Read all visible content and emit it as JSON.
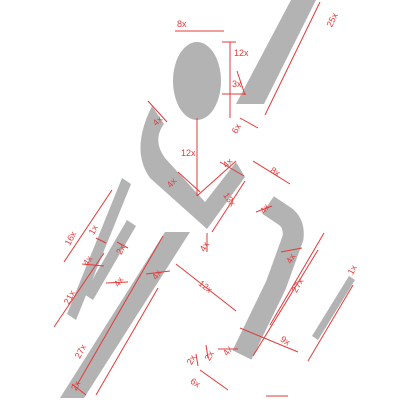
{
  "colors": {
    "figure": "#b3b3b3",
    "dimension": "#e23b3b",
    "background": "#ffffff"
  },
  "figure_parts": [
    "head",
    "arm-stripe",
    "torso-chevron",
    "left-arm-stripe",
    "left-leg-stripe",
    "left-foot-stripe",
    "right-leg-hook",
    "right-leg-stripe"
  ],
  "labels": {
    "head_width": "8x",
    "head_height": "12x",
    "head_gap": "3x",
    "arm_length": "25x",
    "arm_gap": "6x",
    "chevron_width_left": "4x",
    "neck_length": "12x",
    "chevron_inner_left": "4x",
    "chevron_width_right": "4x",
    "chevron_depth": "13x",
    "torso_offset": "8x",
    "leg_hook_width": "4x",
    "leg_hook_inner": "4x",
    "torso_point": "4x",
    "left_arm_length": "16x",
    "left_arm_gap": "1x",
    "left_arm_width": "4x",
    "left_gap_2x": "2x",
    "left_arm_total": "21x",
    "left_leg_width_a": "4x",
    "left_leg_width_b": "4x",
    "hip_span": "12x",
    "right_leg_length": "27x",
    "right_gap": "1x",
    "left_leg_length": "27x",
    "left_foot_gap": "2x",
    "knee_width": "4x",
    "knee_offset": "9x",
    "foot_gap_a": "2x",
    "foot_gap_b": "2x",
    "foot_length": "6x"
  }
}
